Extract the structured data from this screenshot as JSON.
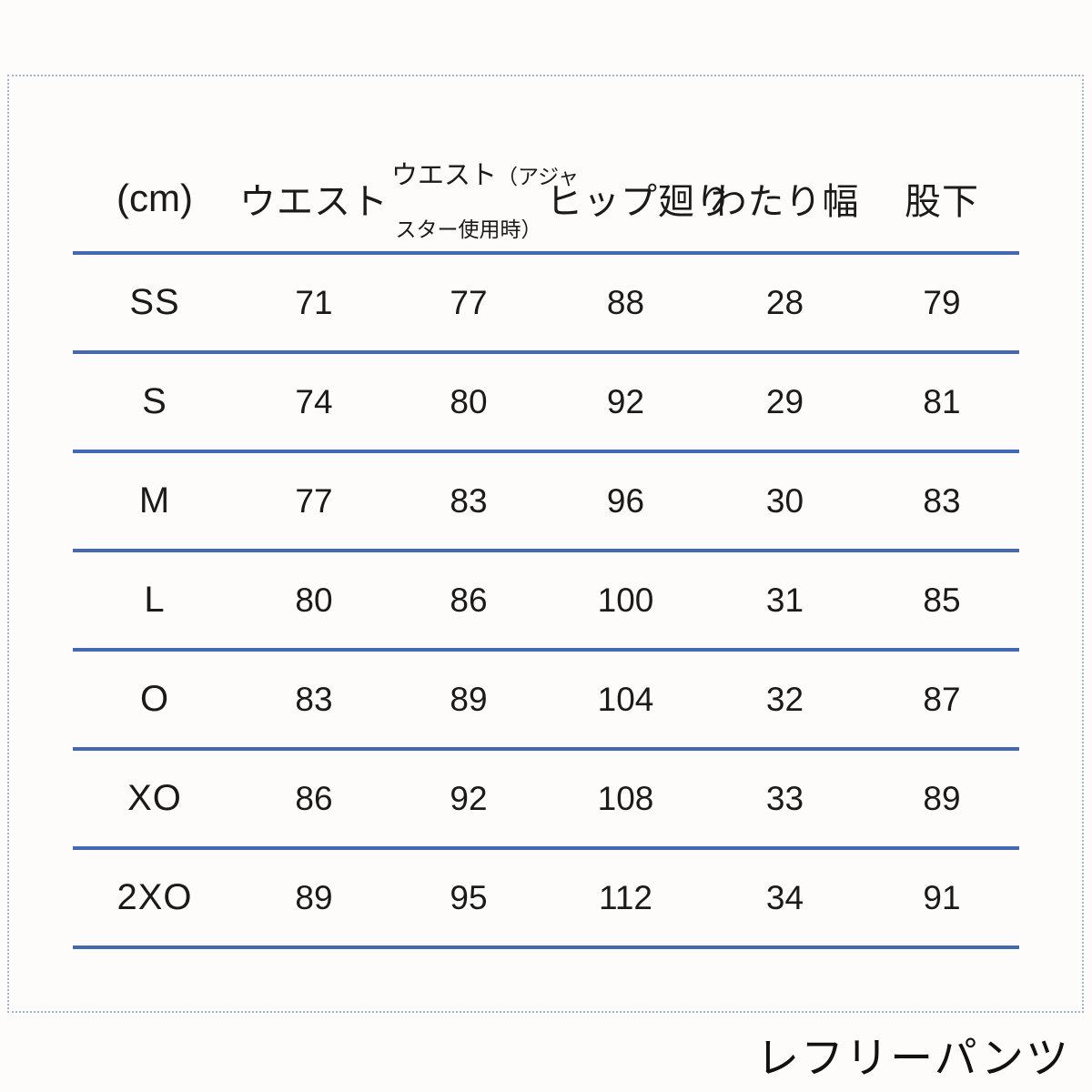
{
  "page": {
    "caption": "レフリーパンツ"
  },
  "table": {
    "unit_label": "(cm)",
    "headers": {
      "waist": "ウエスト",
      "waist_adj_line1_main": "ウエスト",
      "waist_adj_line1_sub": "（アジャ",
      "waist_adj_line2_sub": "スター使用時）",
      "hip": "ヒップ廻り",
      "thigh": "わたり幅",
      "inseam": "股下"
    },
    "rows": [
      {
        "size": "SS",
        "values": [
          "71",
          "77",
          "88",
          "28",
          "79"
        ]
      },
      {
        "size": "S",
        "values": [
          "74",
          "80",
          "92",
          "29",
          "81"
        ]
      },
      {
        "size": "M",
        "values": [
          "77",
          "83",
          "96",
          "30",
          "83"
        ]
      },
      {
        "size": "L",
        "values": [
          "80",
          "86",
          "100",
          "31",
          "85"
        ]
      },
      {
        "size": "O",
        "values": [
          "83",
          "89",
          "104",
          "32",
          "87"
        ]
      },
      {
        "size": "XO",
        "values": [
          "86",
          "92",
          "108",
          "33",
          "89"
        ]
      },
      {
        "size": "2XO",
        "values": [
          "89",
          "95",
          "112",
          "34",
          "91"
        ]
      }
    ]
  },
  "chart_data": {
    "type": "table",
    "title": "レフリーパンツ",
    "unit": "cm",
    "columns": [
      "(cm)",
      "ウエスト",
      "ウエスト（アジャスター使用時）",
      "ヒップ廻り",
      "わたり幅",
      "股下"
    ],
    "rows": [
      [
        "SS",
        71,
        77,
        88,
        28,
        79
      ],
      [
        "S",
        74,
        80,
        92,
        29,
        81
      ],
      [
        "M",
        77,
        83,
        96,
        30,
        83
      ],
      [
        "L",
        80,
        86,
        100,
        31,
        85
      ],
      [
        "O",
        83,
        89,
        104,
        32,
        87
      ],
      [
        "XO",
        86,
        92,
        108,
        33,
        89
      ],
      [
        "2XO",
        89,
        95,
        112,
        34,
        91
      ]
    ]
  },
  "colors": {
    "divider": "#4269b2",
    "frame_border": "#9fb6d6",
    "text": "#1a1a1a"
  }
}
